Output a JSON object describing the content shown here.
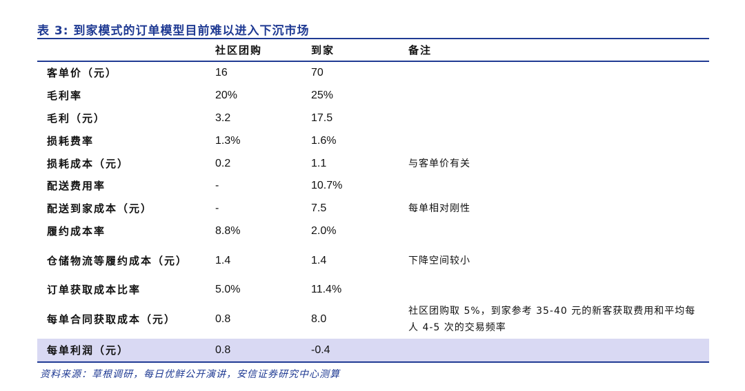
{
  "title": "表 3:  到家模式的订单模型目前难以进入下沉市场",
  "headers": [
    "",
    "社区团购",
    "到家",
    "备注"
  ],
  "rows": [
    {
      "label": "客单价（元）",
      "community": "16",
      "home": "70",
      "note": ""
    },
    {
      "label": "毛利率",
      "community": "20%",
      "home": "25%",
      "note": ""
    },
    {
      "label": "毛利（元）",
      "community": "3.2",
      "home": "17.5",
      "note": ""
    },
    {
      "label": "损耗费率",
      "community": "1.3%",
      "home": "1.6%",
      "note": ""
    },
    {
      "label": "损耗成本（元）",
      "community": "0.2",
      "home": "1.1",
      "note": "与客单价有关"
    },
    {
      "label": "配送费用率",
      "community": "-",
      "home": "10.7%",
      "note": ""
    },
    {
      "label": "配送到家成本（元）",
      "community": "-",
      "home": "7.5",
      "note": "每单相对刚性"
    },
    {
      "label": "履约成本率",
      "community": "8.8%",
      "home": "2.0%",
      "note": ""
    },
    {
      "label": "仓储物流等履约成本（元）",
      "community": "1.4",
      "home": "1.4",
      "note": "下降空间较小"
    },
    {
      "label": "订单获取成本比率",
      "community": "5.0%",
      "home": "11.4%",
      "note": ""
    },
    {
      "label": "每单合同获取成本（元）",
      "community": "0.8",
      "home": "8.0",
      "note": "社区团购取 5%，到家参考 35-40 元的新客获取费用和平均每人 4-5 次的交易频率"
    },
    {
      "label": "每单利润（元）",
      "community": "0.8",
      "home": "-0.4",
      "note": ""
    }
  ],
  "source": "资料来源：草根调研，每日优鲜公开演讲，安信证券研究中心测算",
  "colors": {
    "accent": "#1f3a93",
    "highlight": "#d9d9f3"
  }
}
